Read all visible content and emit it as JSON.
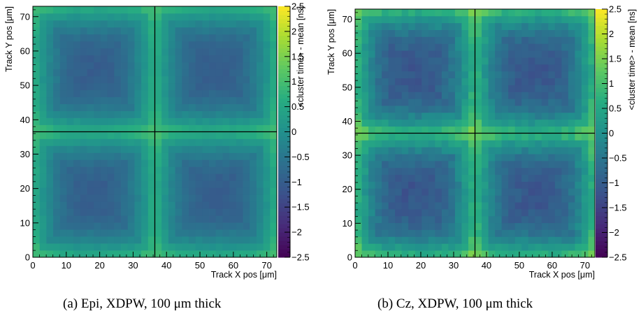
{
  "captions": {
    "a": "(a) Epi, XDPW, 100 μm thick",
    "b": "(b) Cz, XDPW, 100 μm thick"
  },
  "chart_data": [
    {
      "type": "heatmap",
      "id": "epi",
      "xlabel": "Track X pos [μm]",
      "ylabel": "Track Y pos [μm]",
      "zlabel": "<cluster time> - mean [ns]",
      "xlim": [
        0,
        73
      ],
      "ylim": [
        0,
        73
      ],
      "zlim": [
        -2.5,
        2.5
      ],
      "xticks": [
        0,
        10,
        20,
        30,
        40,
        50,
        60,
        70
      ],
      "yticks": [
        0,
        10,
        20,
        30,
        40,
        50,
        60,
        70
      ],
      "zticks": [
        2.5,
        2,
        1.5,
        1,
        0.5,
        0,
        -0.5,
        -1,
        -1.5,
        -2,
        -2.5
      ],
      "zticklabels": [
        "2.5",
        "2",
        "1.5",
        "1",
        "0.5",
        "0",
        "−0.5",
        "−1",
        "−1.5",
        "−2",
        "−2.5"
      ],
      "bins": 36,
      "pixel_pitch": 36.5,
      "lines": {
        "x": 36.5,
        "y": 36.5
      },
      "field": {
        "center_value": -1.0,
        "edge_value": 0.55,
        "corner_value": 1.3,
        "ripple": 0.08
      }
    },
    {
      "type": "heatmap",
      "id": "cz",
      "xlabel": "Track X pos [μm]",
      "ylabel": "Track Y pos [μm]",
      "zlabel": "<cluster time> - mean [ns]",
      "xlim": [
        0,
        73
      ],
      "ylim": [
        0,
        73
      ],
      "zlim": [
        -2.5,
        2.5
      ],
      "xticks": [
        0,
        10,
        20,
        30,
        40,
        50,
        60,
        70
      ],
      "yticks": [
        0,
        10,
        20,
        30,
        40,
        50,
        60,
        70
      ],
      "zticks": [
        2.5,
        2,
        1.5,
        1,
        0.5,
        0,
        -0.5,
        -1,
        -1.5,
        -2,
        -2.5
      ],
      "zticklabels": [
        "2.5",
        "2",
        "1.5",
        "1",
        "0.5",
        "0",
        "−0.5",
        "−1",
        "−1.5",
        "−2",
        "−2.5"
      ],
      "bins": 36,
      "pixel_pitch": 36.5,
      "lines": {
        "x": 36.5,
        "y": 36.5
      },
      "field": {
        "center_value": -1.15,
        "edge_value": 0.6,
        "corner_value": 1.9,
        "ripple": 0.18
      }
    }
  ]
}
